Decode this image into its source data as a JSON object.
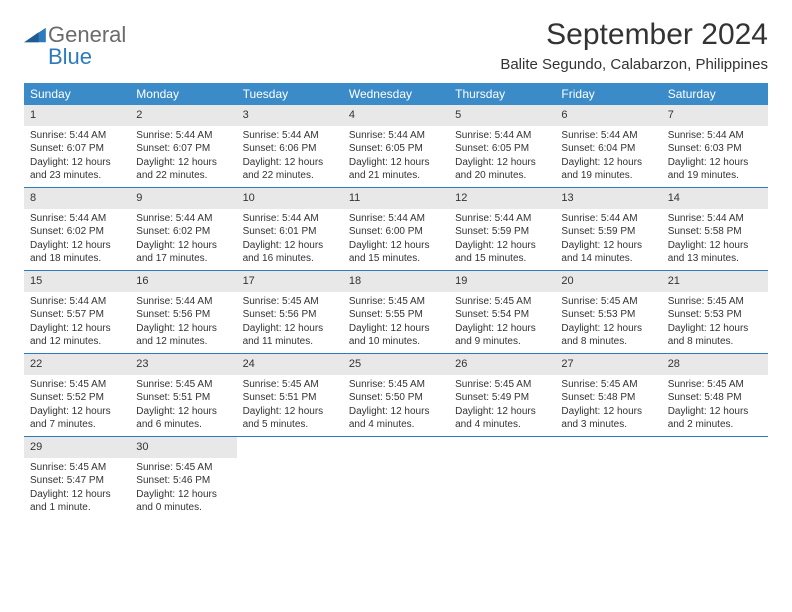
{
  "brand": {
    "word1": "General",
    "word2": "Blue"
  },
  "title": "September 2024",
  "location": "Balite Segundo, Calabarzon, Philippines",
  "colors": {
    "header_bg": "#3b8bc8",
    "header_text": "#ffffff",
    "rule": "#2e7abf",
    "daynum_bg": "#e8e8e8",
    "text": "#333333",
    "logo_gray": "#6b6b6b",
    "logo_blue": "#2e7abf"
  },
  "dayNames": [
    "Sunday",
    "Monday",
    "Tuesday",
    "Wednesday",
    "Thursday",
    "Friday",
    "Saturday"
  ],
  "grid": {
    "startOffset": 0,
    "daysInMonth": 30
  },
  "days": [
    {
      "n": 1,
      "sr": "5:44 AM",
      "ss": "6:07 PM",
      "dl": "12 hours and 23 minutes."
    },
    {
      "n": 2,
      "sr": "5:44 AM",
      "ss": "6:07 PM",
      "dl": "12 hours and 22 minutes."
    },
    {
      "n": 3,
      "sr": "5:44 AM",
      "ss": "6:06 PM",
      "dl": "12 hours and 22 minutes."
    },
    {
      "n": 4,
      "sr": "5:44 AM",
      "ss": "6:05 PM",
      "dl": "12 hours and 21 minutes."
    },
    {
      "n": 5,
      "sr": "5:44 AM",
      "ss": "6:05 PM",
      "dl": "12 hours and 20 minutes."
    },
    {
      "n": 6,
      "sr": "5:44 AM",
      "ss": "6:04 PM",
      "dl": "12 hours and 19 minutes."
    },
    {
      "n": 7,
      "sr": "5:44 AM",
      "ss": "6:03 PM",
      "dl": "12 hours and 19 minutes."
    },
    {
      "n": 8,
      "sr": "5:44 AM",
      "ss": "6:02 PM",
      "dl": "12 hours and 18 minutes."
    },
    {
      "n": 9,
      "sr": "5:44 AM",
      "ss": "6:02 PM",
      "dl": "12 hours and 17 minutes."
    },
    {
      "n": 10,
      "sr": "5:44 AM",
      "ss": "6:01 PM",
      "dl": "12 hours and 16 minutes."
    },
    {
      "n": 11,
      "sr": "5:44 AM",
      "ss": "6:00 PM",
      "dl": "12 hours and 15 minutes."
    },
    {
      "n": 12,
      "sr": "5:44 AM",
      "ss": "5:59 PM",
      "dl": "12 hours and 15 minutes."
    },
    {
      "n": 13,
      "sr": "5:44 AM",
      "ss": "5:59 PM",
      "dl": "12 hours and 14 minutes."
    },
    {
      "n": 14,
      "sr": "5:44 AM",
      "ss": "5:58 PM",
      "dl": "12 hours and 13 minutes."
    },
    {
      "n": 15,
      "sr": "5:44 AM",
      "ss": "5:57 PM",
      "dl": "12 hours and 12 minutes."
    },
    {
      "n": 16,
      "sr": "5:44 AM",
      "ss": "5:56 PM",
      "dl": "12 hours and 12 minutes."
    },
    {
      "n": 17,
      "sr": "5:45 AM",
      "ss": "5:56 PM",
      "dl": "12 hours and 11 minutes."
    },
    {
      "n": 18,
      "sr": "5:45 AM",
      "ss": "5:55 PM",
      "dl": "12 hours and 10 minutes."
    },
    {
      "n": 19,
      "sr": "5:45 AM",
      "ss": "5:54 PM",
      "dl": "12 hours and 9 minutes."
    },
    {
      "n": 20,
      "sr": "5:45 AM",
      "ss": "5:53 PM",
      "dl": "12 hours and 8 minutes."
    },
    {
      "n": 21,
      "sr": "5:45 AM",
      "ss": "5:53 PM",
      "dl": "12 hours and 8 minutes."
    },
    {
      "n": 22,
      "sr": "5:45 AM",
      "ss": "5:52 PM",
      "dl": "12 hours and 7 minutes."
    },
    {
      "n": 23,
      "sr": "5:45 AM",
      "ss": "5:51 PM",
      "dl": "12 hours and 6 minutes."
    },
    {
      "n": 24,
      "sr": "5:45 AM",
      "ss": "5:51 PM",
      "dl": "12 hours and 5 minutes."
    },
    {
      "n": 25,
      "sr": "5:45 AM",
      "ss": "5:50 PM",
      "dl": "12 hours and 4 minutes."
    },
    {
      "n": 26,
      "sr": "5:45 AM",
      "ss": "5:49 PM",
      "dl": "12 hours and 4 minutes."
    },
    {
      "n": 27,
      "sr": "5:45 AM",
      "ss": "5:48 PM",
      "dl": "12 hours and 3 minutes."
    },
    {
      "n": 28,
      "sr": "5:45 AM",
      "ss": "5:48 PM",
      "dl": "12 hours and 2 minutes."
    },
    {
      "n": 29,
      "sr": "5:45 AM",
      "ss": "5:47 PM",
      "dl": "12 hours and 1 minute."
    },
    {
      "n": 30,
      "sr": "5:45 AM",
      "ss": "5:46 PM",
      "dl": "12 hours and 0 minutes."
    }
  ],
  "labels": {
    "sunrise": "Sunrise:",
    "sunset": "Sunset:",
    "daylight": "Daylight:"
  }
}
